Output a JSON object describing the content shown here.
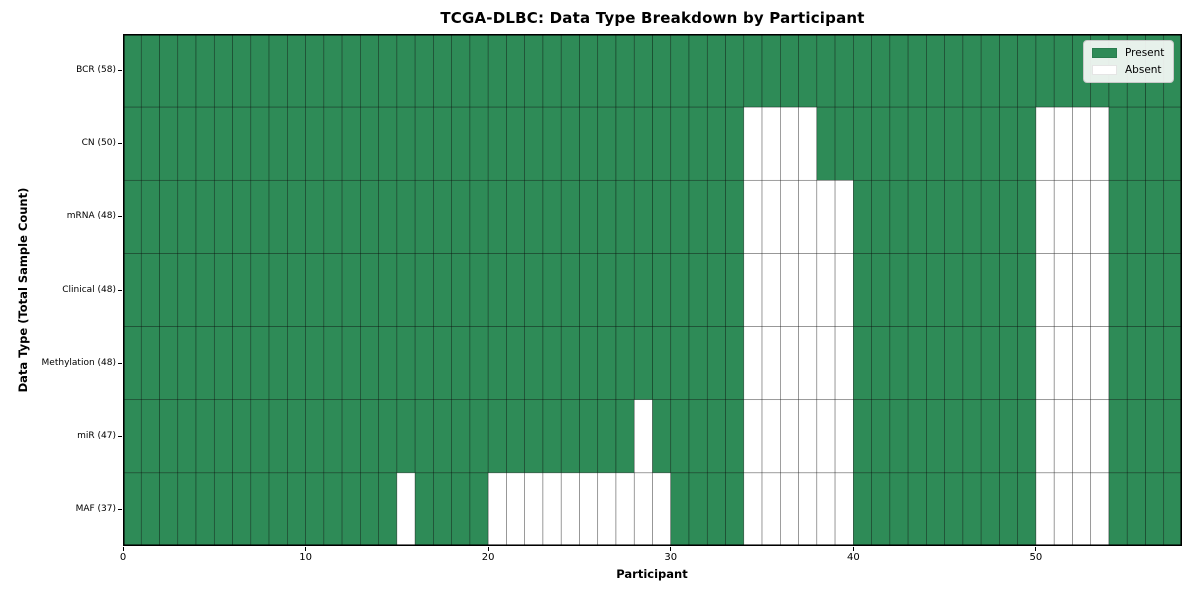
{
  "figure": {
    "background": "#ffffff"
  },
  "chart_data": {
    "type": "heatmap",
    "title": "TCGA-DLBC: Data Type Breakdown by Participant",
    "xlabel": "Participant",
    "ylabel": "Data Type (Total Sample Count)",
    "x_range": [
      0,
      58
    ],
    "x_ticks": [
      0,
      10,
      20,
      30,
      40,
      50
    ],
    "n_participants": 58,
    "grid": "cell borders on",
    "legend": {
      "position": "upper right",
      "entries": [
        {
          "label": "Present",
          "color": "#2e8b57"
        },
        {
          "label": "Absent",
          "color": "#ffffff"
        }
      ]
    },
    "colors": {
      "present": "#2e8b57",
      "absent": "#ffffff",
      "cell_edge": "#000000",
      "cell_edge_opacity": 0.5,
      "frame": "#000000"
    },
    "rows": [
      {
        "label": "BCR (58)",
        "data_type": "BCR",
        "total_samples": 58,
        "absent_participants": []
      },
      {
        "label": "CN (50)",
        "data_type": "CN",
        "total_samples": 50,
        "absent_participants": [
          34,
          35,
          36,
          37,
          50,
          51,
          52,
          53
        ]
      },
      {
        "label": "mRNA (48)",
        "data_type": "mRNA",
        "total_samples": 48,
        "absent_participants": [
          34,
          35,
          36,
          37,
          38,
          39,
          50,
          51,
          52,
          53
        ]
      },
      {
        "label": "Clinical (48)",
        "data_type": "Clinical",
        "total_samples": 48,
        "absent_participants": [
          34,
          35,
          36,
          37,
          38,
          39,
          50,
          51,
          52,
          53
        ]
      },
      {
        "label": "Methylation (48)",
        "data_type": "Methylation",
        "total_samples": 48,
        "absent_participants": [
          34,
          35,
          36,
          37,
          38,
          39,
          50,
          51,
          52,
          53
        ]
      },
      {
        "label": "miR (47)",
        "data_type": "miR",
        "total_samples": 47,
        "absent_participants": [
          28,
          34,
          35,
          36,
          37,
          38,
          39,
          50,
          51,
          52,
          53
        ]
      },
      {
        "label": "MAF (37)",
        "data_type": "MAF",
        "total_samples": 37,
        "absent_participants": [
          15,
          20,
          21,
          22,
          23,
          24,
          25,
          26,
          27,
          28,
          29,
          34,
          35,
          36,
          37,
          38,
          39,
          50,
          51,
          52,
          53
        ]
      }
    ]
  }
}
